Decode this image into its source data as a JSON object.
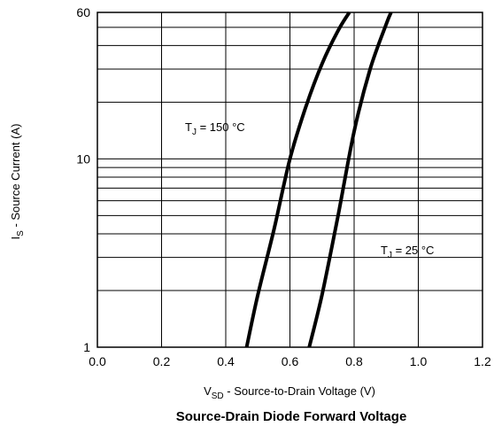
{
  "chart_data": {
    "type": "line",
    "title": "Source-Drain Diode Forward Voltage",
    "xlabel": {
      "main": "V",
      "sub": "SD",
      "rest": " - Source-to-Drain Voltage (V)"
    },
    "ylabel": {
      "main": "I",
      "sub": "S",
      "rest": " - Source Current (A)"
    },
    "x_scale": "linear",
    "y_scale": "log",
    "xlim": [
      0.0,
      1.2
    ],
    "ylim": [
      1,
      60
    ],
    "x_ticks": [
      0.0,
      0.2,
      0.4,
      0.6,
      0.8,
      1.0,
      1.2
    ],
    "x_tick_labels": [
      "0.0",
      "0.2",
      "0.4",
      "0.6",
      "0.8",
      "1.0",
      "1.2"
    ],
    "y_ticks": [
      1,
      10,
      60
    ],
    "y_tick_labels": [
      "1",
      "10",
      "60"
    ],
    "y_grid": [
      2,
      3,
      4,
      5,
      6,
      7,
      8,
      9,
      10,
      20,
      30,
      40,
      50,
      60
    ],
    "grid": true,
    "series": [
      {
        "name": "150 °C",
        "annotation": {
          "main": "T",
          "sub": "J",
          "rest": " = 150 °C"
        },
        "x": [
          0.465,
          0.5,
          0.55,
          0.6,
          0.65,
          0.7,
          0.75,
          0.785
        ],
        "y": [
          1,
          1.9,
          4.2,
          10,
          19,
          32,
          48,
          60
        ]
      },
      {
        "name": "25 °C",
        "annotation": {
          "main": "T",
          "sub": "J",
          "rest": " = 25 °C"
        },
        "x": [
          0.66,
          0.7,
          0.75,
          0.8,
          0.85,
          0.9,
          0.915
        ],
        "y": [
          1,
          1.9,
          5,
          14,
          30,
          52,
          60
        ]
      }
    ]
  }
}
